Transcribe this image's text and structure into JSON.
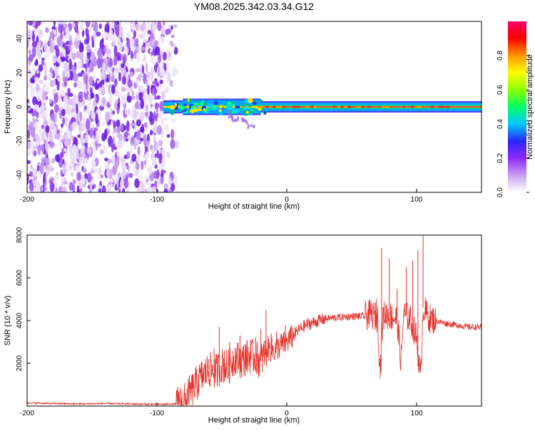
{
  "title": "YM08.2025.342.03.34.G12",
  "colors": {
    "signal": "#e8322c",
    "axis": "#000000",
    "scatter": "#7a28e6",
    "center": "#ff2f2f"
  },
  "chart_data": [
    {
      "type": "heatmap",
      "name": "spectrogram",
      "xlabel": "Height of straight line (km)",
      "ylabel": "Frequency (Hz)",
      "xlim": [
        -200,
        150
      ],
      "ylim": [
        -50,
        50
      ],
      "xticks": [
        -200,
        -100,
        0,
        100
      ],
      "yticks": [
        40,
        20,
        0,
        -20,
        -40
      ],
      "grid": false,
      "noise_region_x": [
        -200,
        -84
      ],
      "signal_band": [
        {
          "x_start": -95,
          "x_end": -80,
          "half_width_hz": 3
        },
        {
          "x_start": -80,
          "x_end": -20,
          "half_width_hz": 4
        },
        {
          "x_start": -20,
          "x_end": 150,
          "half_width_hz": 2.5
        }
      ],
      "colorbar": {
        "label": "Normalized spectral amplitude",
        "range": [
          0.0,
          1.0
        ],
        "ticks": [
          "0.0",
          "0.2",
          "0.4",
          "0.6",
          "0.8"
        ],
        "colormap": [
          "#ffffff",
          "#c8a0f0",
          "#8c28ff",
          "#2828ff",
          "#00c8ff",
          "#00ff64",
          "#8cff00",
          "#ffff00",
          "#ff9600",
          "#ff0000",
          "#ff0064"
        ]
      }
    },
    {
      "type": "line",
      "name": "snr",
      "xlabel": "Height of straight line (km)",
      "ylabel": "SNR (10 * v/v)",
      "xlim": [
        -200,
        150
      ],
      "ylim": [
        0,
        8000
      ],
      "xticks": [
        -200,
        -100,
        0,
        100
      ],
      "yticks": [
        8000,
        6000,
        4000,
        2000
      ],
      "grid": false,
      "series": [
        {
          "name": "SNR",
          "x": [
            -200,
            -180,
            -160,
            -140,
            -120,
            -100,
            -85,
            -80,
            -75,
            -70,
            -65,
            -60,
            -55,
            -50,
            -45,
            -40,
            -35,
            -30,
            -25,
            -20,
            -15,
            -10,
            -5,
            0,
            5,
            10,
            15,
            20,
            25,
            30,
            40,
            50,
            60,
            65,
            70,
            72,
            74,
            76,
            80,
            85,
            88,
            90,
            95,
            100,
            103,
            105,
            110,
            115,
            120,
            130,
            140,
            150
          ],
          "y": [
            150,
            120,
            100,
            120,
            100,
            80,
            100,
            150,
            600,
            1000,
            1400,
            1700,
            1600,
            1900,
            1800,
            2300,
            2100,
            2300,
            2300,
            2100,
            2700,
            2600,
            2800,
            3000,
            3300,
            3600,
            3800,
            3900,
            4000,
            4100,
            4150,
            4200,
            4200,
            4300,
            4100,
            1600,
            4200,
            4300,
            4200,
            4100,
            2000,
            4300,
            4100,
            3200,
            1200,
            4600,
            4100,
            4000,
            3900,
            3800,
            3700,
            3700
          ],
          "spikes": [
            [
              -83,
              350
            ],
            [
              -78,
              600
            ],
            [
              -72,
              1250
            ],
            [
              -68,
              1500
            ],
            [
              -64,
              1800
            ],
            [
              -60,
              2200
            ],
            [
              -56,
              2700
            ],
            [
              -52,
              3700
            ],
            [
              -48,
              2600
            ],
            [
              -44,
              3000
            ],
            [
              -40,
              2300
            ],
            [
              -36,
              3300
            ],
            [
              -32,
              2900
            ],
            [
              -28,
              3100
            ],
            [
              -24,
              3200
            ],
            [
              -20,
              3600
            ],
            [
              -16,
              4500
            ],
            [
              -12,
              3400
            ],
            [
              -8,
              3500
            ],
            [
              -4,
              3400
            ],
            [
              -1,
              3800
            ],
            [
              69,
              5000
            ],
            [
              73,
              7400
            ],
            [
              79,
              6900
            ],
            [
              85,
              5500
            ],
            [
              92,
              6500
            ],
            [
              97,
              6800
            ],
            [
              101,
              7300
            ],
            [
              105,
              8000
            ]
          ]
        }
      ]
    }
  ]
}
